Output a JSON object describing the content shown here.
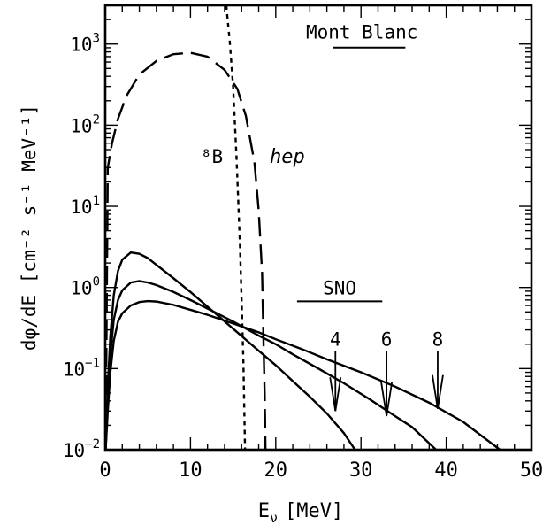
{
  "chart_data": {
    "type": "line",
    "xlabel": "E",
    "xlabel_sub": "ν",
    "xlabel_unit": "[MeV]",
    "ylabel": "dφ/dE [cm⁻² s⁻¹ MeV⁻¹]",
    "xlim": [
      0,
      50
    ],
    "ylim": [
      0.01,
      3000
    ],
    "y_scale": "log",
    "x_ticks": [
      0,
      10,
      20,
      30,
      40,
      50
    ],
    "x_tick_labels": [
      "0",
      "10",
      "20",
      "30",
      "40",
      "50"
    ],
    "y_ticks": [
      0.01,
      0.1,
      1,
      10,
      100,
      1000
    ],
    "y_tick_labels": [
      {
        "base": "10",
        "exp": "−2"
      },
      {
        "base": "10",
        "exp": "−1"
      },
      {
        "base": "10",
        "exp": "0"
      },
      {
        "base": "10",
        "exp": "1"
      },
      {
        "base": "10",
        "exp": "2"
      },
      {
        "base": "10",
        "exp": "3"
      }
    ],
    "series": [
      {
        "name": "⁸B",
        "style": "dotted",
        "x": [
          14.2,
          14.6,
          15.0,
          15.4,
          15.8,
          16.2,
          16.4
        ],
        "y": [
          3000,
          1100,
          300,
          40,
          3.5,
          0.13,
          0.01
        ]
      },
      {
        "name": "hep",
        "style": "dashed",
        "x": [
          0.05,
          0.3,
          0.8,
          1.5,
          2.5,
          4,
          6,
          8,
          10,
          12,
          14,
          15.5,
          16.5,
          17.5,
          18,
          18.4,
          18.6,
          18.7,
          18.8
        ],
        "y": [
          0.01,
          30,
          60,
          120,
          230,
          420,
          620,
          750,
          780,
          700,
          480,
          280,
          130,
          35,
          9,
          1.5,
          0.15,
          0.05,
          0.01
        ]
      },
      {
        "label": "4",
        "style": "solid",
        "x": [
          0.05,
          0.3,
          0.6,
          1,
          1.5,
          2,
          3,
          4,
          5,
          6,
          8,
          10,
          12,
          15,
          18,
          20,
          22,
          24,
          26,
          28,
          29.3
        ],
        "y": [
          0.01,
          0.06,
          0.25,
          0.8,
          1.6,
          2.2,
          2.7,
          2.6,
          2.3,
          1.9,
          1.3,
          0.88,
          0.58,
          0.31,
          0.166,
          0.11,
          0.07,
          0.045,
          0.028,
          0.016,
          0.01
        ]
      },
      {
        "label": "6",
        "style": "solid",
        "x": [
          0.05,
          0.3,
          0.6,
          1,
          1.5,
          2,
          3,
          4,
          5,
          6,
          8,
          10,
          12,
          15,
          18,
          20,
          22,
          25,
          28,
          31,
          34,
          36,
          38.8
        ],
        "y": [
          0.01,
          0.04,
          0.15,
          0.4,
          0.7,
          0.92,
          1.15,
          1.2,
          1.15,
          1.07,
          0.88,
          0.7,
          0.55,
          0.38,
          0.255,
          0.2,
          0.15,
          0.1,
          0.066,
          0.042,
          0.026,
          0.019,
          0.01
        ]
      },
      {
        "label": "8",
        "style": "solid",
        "x": [
          0.05,
          0.3,
          0.6,
          1,
          1.5,
          2,
          3,
          4,
          5,
          6,
          8,
          10,
          12,
          15,
          18,
          20,
          23,
          26,
          30,
          34,
          38,
          42,
          46.3
        ],
        "y": [
          0.01,
          0.03,
          0.09,
          0.22,
          0.38,
          0.48,
          0.6,
          0.66,
          0.68,
          0.67,
          0.61,
          0.53,
          0.46,
          0.36,
          0.28,
          0.23,
          0.175,
          0.13,
          0.09,
          0.06,
          0.038,
          0.022,
          0.01
        ]
      }
    ],
    "annotations": {
      "mont_blanc": {
        "text": "Mont Blanc",
        "line_x": [
          25,
          35.2
        ],
        "line_y": 1000
      },
      "sno": {
        "text": "SNO",
        "line_x": [
          22.5,
          32.5
        ],
        "line_y": 0.71
      },
      "b8_label": {
        "text": "⁸B",
        "x": 12.5,
        "y": 40
      },
      "hep_label": {
        "text": "hep",
        "x": 19.3,
        "y": 40
      },
      "arrows": [
        {
          "label": "4",
          "x": 27,
          "y_top": 0.165,
          "y_bottom": 0.03
        },
        {
          "label": "6",
          "x": 33,
          "y_top": 0.165,
          "y_bottom": 0.026
        },
        {
          "label": "8",
          "x": 39,
          "y_top": 0.165,
          "y_bottom": 0.032
        }
      ]
    }
  }
}
